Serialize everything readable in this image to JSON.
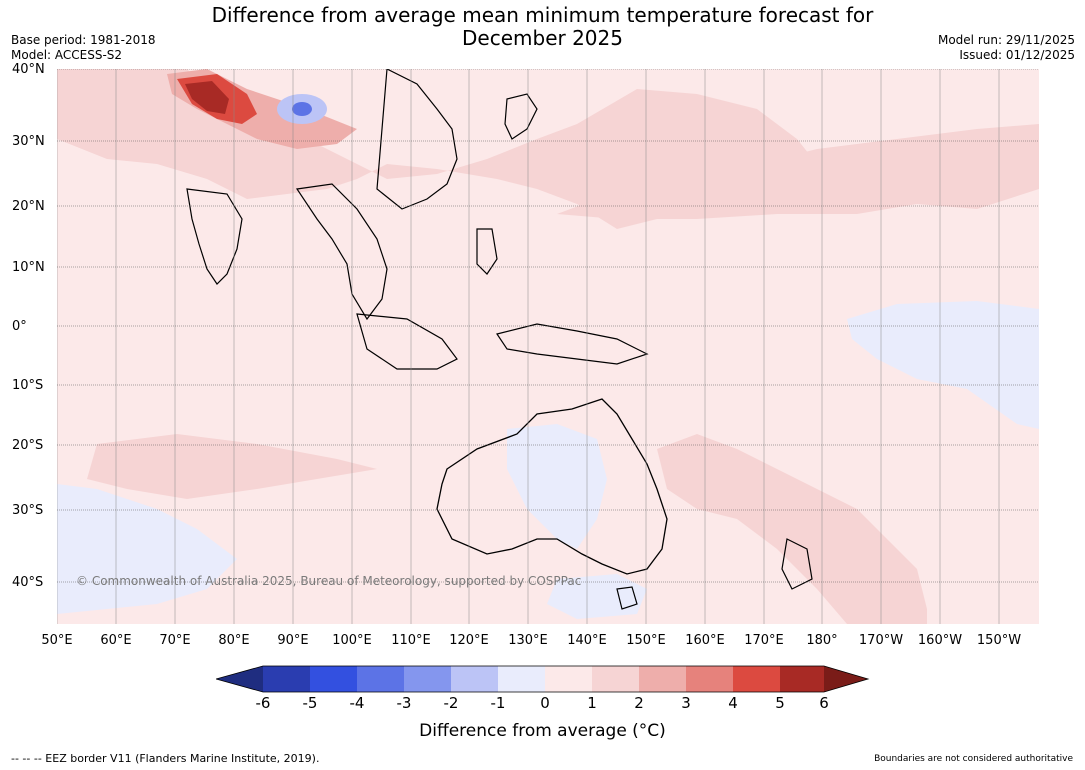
{
  "title": {
    "line1": "Difference from average mean minimum temperature forecast for",
    "line2": "December 2025"
  },
  "meta_left": {
    "base_period": "Base period: 1981-2018",
    "model": "Model: ACCESS-S2"
  },
  "meta_right": {
    "model_run": "Model run: 29/11/2025",
    "issued": "Issued: 01/12/2025"
  },
  "lat_labels": [
    "40°N",
    "30°N",
    "20°N",
    "10°N",
    "0°",
    "10°S",
    "20°S",
    "30°S",
    "40°S"
  ],
  "lon_labels": [
    "50°E",
    "60°E",
    "70°E",
    "80°E",
    "90°E",
    "100°E",
    "110°E",
    "120°E",
    "130°E",
    "140°E",
    "150°E",
    "160°E",
    "170°E",
    "180°",
    "170°W",
    "160°W",
    "150°W"
  ],
  "copyright": "© Commonwealth of Australia 2025, Bureau of Meteorology, supported by COSPPac",
  "colorbar": {
    "ticks": [
      "-6",
      "-5",
      "-4",
      "-3",
      "-2",
      "-1",
      "0",
      "1",
      "2",
      "3",
      "4",
      "5",
      "6"
    ],
    "colors": [
      "#1f2d80",
      "#2a3db0",
      "#3350e0",
      "#5c73e6",
      "#8496ee",
      "#bcc4f6",
      "#e9ecfc",
      "#fce9e9",
      "#f6d4d4",
      "#eeaeab",
      "#e6827c",
      "#dc4a40",
      "#a82a25",
      "#7a1c18"
    ],
    "label": "Difference from average (°C)"
  },
  "footer": {
    "eez": "--  --  -- EEZ border V11 (Flanders Marine Institute, 2019).",
    "disclaimer": "Boundaries are not considered authoritative"
  },
  "map_data": {
    "extent": {
      "lon_min": 50,
      "lon_max": 217,
      "lat_min": -46,
      "lat_max": 40
    },
    "base_anomaly_class": "0 to 1",
    "regions": [
      {
        "name": "Himalaya / Tibet warm core",
        "anomaly": "5 to 6"
      },
      {
        "name": "Tibetan plateau cold spot",
        "anomaly": "-4 to -1"
      },
      {
        "name": "Northwest Australia cool area",
        "anomaly": "-1 to 0"
      },
      {
        "name": "Southern Indian Ocean cool area",
        "anomaly": "-1 to 0"
      },
      {
        "name": "Central equatorial Pacific cool area",
        "anomaly": "-1 to 0"
      },
      {
        "name": "Tasman Sea warm area",
        "anomaly": "1 to 2"
      },
      {
        "name": "North Pacific warm area",
        "anomaly": "1 to 2"
      },
      {
        "name": "Eastern China warm area",
        "anomaly": "1 to 3"
      }
    ]
  }
}
